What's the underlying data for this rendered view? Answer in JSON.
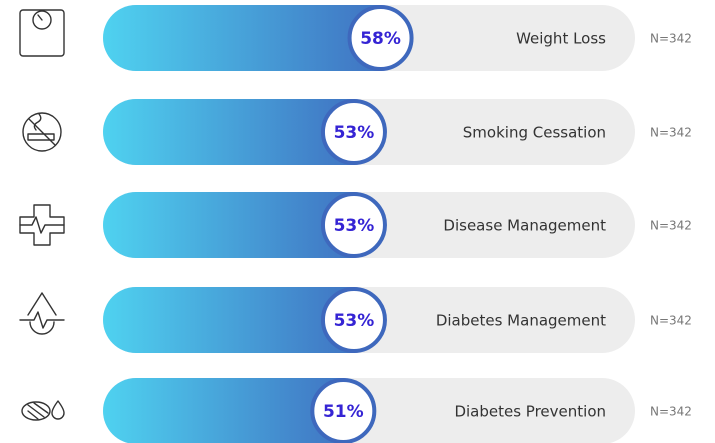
{
  "chart_data": {
    "type": "bar",
    "orientation": "horizontal",
    "categories": [
      "Weight Loss",
      "Smoking Cessation",
      "Disease Management",
      "Diabetes Management",
      "Diabetes Prevention"
    ],
    "values": [
      58,
      53,
      53,
      53,
      51
    ],
    "value_labels": [
      "58%",
      "53%",
      "53%",
      "53%",
      "51%"
    ],
    "sample_sizes": [
      "N=342",
      "N=342",
      "N=342",
      "N=342",
      "N=342"
    ],
    "xlim": [
      0,
      100
    ],
    "colors": {
      "start": "#4fd2f0",
      "end": "#3e68bd",
      "track": "#ededed",
      "label": "#3524d4"
    }
  }
}
